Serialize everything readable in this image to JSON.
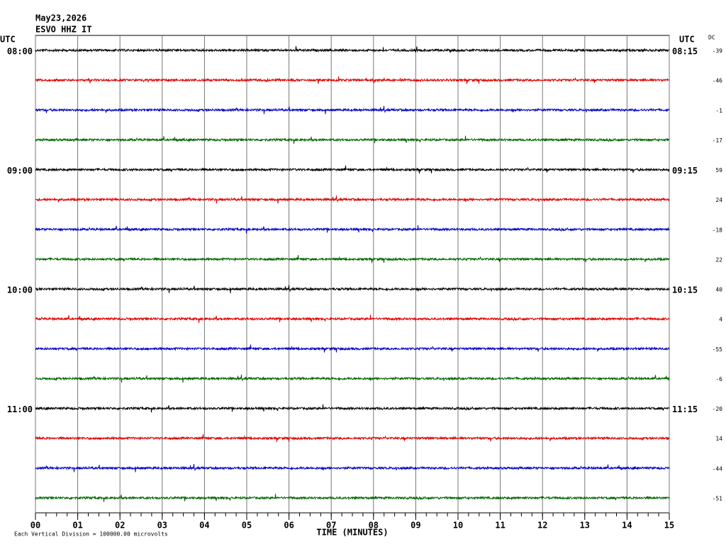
{
  "header": {
    "date": "May23,2026",
    "station": "ESVO HHZ IT",
    "left_zone": "UTC",
    "right_zone": "UTC",
    "dc_heading": "DC"
  },
  "traces": [
    {
      "color": "#000000",
      "dc": -39,
      "left_label": "08:00",
      "right_label": "08:15"
    },
    {
      "color": "#e00000",
      "dc": -46
    },
    {
      "color": "#0000c8",
      "dc": -1
    },
    {
      "color": "#006400",
      "dc": -17
    },
    {
      "color": "#000000",
      "dc": 59,
      "left_label": "09:00",
      "right_label": "09:15"
    },
    {
      "color": "#e00000",
      "dc": 24
    },
    {
      "color": "#0000c8",
      "dc": -18
    },
    {
      "color": "#006400",
      "dc": 22
    },
    {
      "color": "#000000",
      "dc": 40,
      "left_label": "10:00",
      "right_label": "10:15"
    },
    {
      "color": "#e00000",
      "dc": 4
    },
    {
      "color": "#0000c8",
      "dc": -55
    },
    {
      "color": "#006400",
      "dc": -6
    },
    {
      "color": "#000000",
      "dc": -20,
      "left_label": "11:00",
      "right_label": "11:15"
    },
    {
      "color": "#e00000",
      "dc": 14
    },
    {
      "color": "#0000c8",
      "dc": -44
    },
    {
      "color": "#006400",
      "dc": -51
    }
  ],
  "x_axis": {
    "label": "TIME (MINUTES)",
    "lim": [
      0,
      15
    ],
    "ticks": [
      {
        "value": 0,
        "label": "00"
      },
      {
        "value": 1,
        "label": "01"
      },
      {
        "value": 2,
        "label": "02"
      },
      {
        "value": 3,
        "label": "03"
      },
      {
        "value": 4,
        "label": "04"
      },
      {
        "value": 5,
        "label": "05"
      },
      {
        "value": 6,
        "label": "06"
      },
      {
        "value": 7,
        "label": "07"
      },
      {
        "value": 8,
        "label": "08"
      },
      {
        "value": 9,
        "label": "09"
      },
      {
        "value": 10,
        "label": "10"
      },
      {
        "value": 11,
        "label": "11"
      },
      {
        "value": 12,
        "label": "12"
      },
      {
        "value": 13,
        "label": "13"
      },
      {
        "value": 14,
        "label": "14"
      },
      {
        "value": 15,
        "label": "15"
      }
    ]
  },
  "footer": "Each Vertical Division = 100000.00 microvolts"
}
